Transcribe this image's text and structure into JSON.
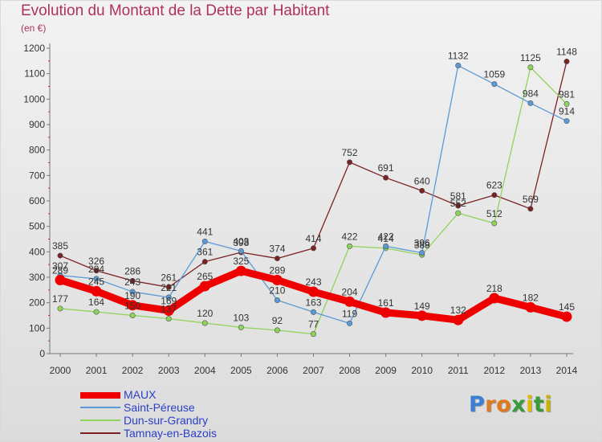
{
  "title": "Evolution du Montant de la Dette par Habitant",
  "unit_label": "(en €)",
  "logo": {
    "letters": [
      "P",
      "r",
      "o",
      "x",
      "i",
      "t",
      "i"
    ],
    "colors": [
      "#3a7fd5",
      "#e07a1f",
      "#e07a1f",
      "#3a9b3a",
      "#e0b800",
      "#3a9b3a",
      "#c8b400"
    ]
  },
  "chart_data": {
    "type": "line",
    "title": "Evolution du Montant de la Dette par Habitant",
    "ylabel": "(en €)",
    "xlabel": "",
    "x": [
      "2000",
      "2001",
      "2002",
      "2003",
      "2004",
      "2005",
      "2006",
      "2007",
      "2008",
      "2009",
      "2010",
      "2011",
      "2012",
      "2013",
      "2014"
    ],
    "y_ticks": [
      0,
      100,
      200,
      300,
      400,
      500,
      600,
      700,
      800,
      900,
      1000,
      1100,
      1200
    ],
    "ylim": [
      0,
      1200
    ],
    "grid": false,
    "legend_position": "bottom-left",
    "series": [
      {
        "name": "Tamnay-en-Bazois",
        "color": "#7a2222",
        "style": "thin",
        "values": [
          385,
          326,
          286,
          261,
          361,
          398,
          374,
          414,
          752,
          691,
          640,
          581,
          623,
          569,
          1148
        ],
        "labels": [
          "385",
          "326",
          "286",
          "261",
          "361",
          "398",
          "374",
          "414",
          "752",
          "691",
          "640",
          "581",
          "623",
          "569",
          "1148"
        ]
      },
      {
        "name": "Dun-sur-Grandry",
        "color": "#8fd45a",
        "style": "thin",
        "values": [
          177,
          164,
          150,
          137,
          120,
          103,
          92,
          77,
          422,
          414,
          388,
          552,
          512,
          1125,
          981
        ],
        "labels": [
          "177",
          "164",
          "150",
          "137",
          "120",
          "103",
          "92",
          "77",
          "422",
          "414",
          "388",
          "552",
          "512",
          "1125",
          "981"
        ]
      },
      {
        "name": "Saint-Péreuse",
        "color": "#5a9ad6",
        "style": "thin",
        "values": [
          307,
          294,
          243,
          221,
          441,
          403,
          210,
          163,
          119,
          422,
          396,
          1132,
          1059,
          984,
          914
        ],
        "labels": [
          "307",
          "294",
          "243",
          "221",
          "441",
          "403",
          "210",
          "163",
          "119",
          "422",
          "396",
          "1132",
          "1059",
          "984",
          "914"
        ]
      },
      {
        "name": "MAUX",
        "color": "#ee0000",
        "style": "thick",
        "values": [
          289,
          245,
          190,
          169,
          265,
          325,
          289,
          243,
          204,
          161,
          149,
          132,
          218,
          182,
          145
        ],
        "labels": [
          "289",
          "245",
          "190",
          "169",
          "265",
          "325",
          "289",
          "243",
          "204",
          "161",
          "149",
          "132",
          "218",
          "182",
          "145"
        ]
      }
    ]
  },
  "legend": [
    {
      "label": "MAUX",
      "color": "#ee0000",
      "thick": true
    },
    {
      "label": "Saint-Péreuse",
      "color": "#5a9ad6",
      "thick": false
    },
    {
      "label": "Dun-sur-Grandry",
      "color": "#8fd45a",
      "thick": false
    },
    {
      "label": "Tamnay-en-Bazois",
      "color": "#7a2222",
      "thick": false
    }
  ]
}
